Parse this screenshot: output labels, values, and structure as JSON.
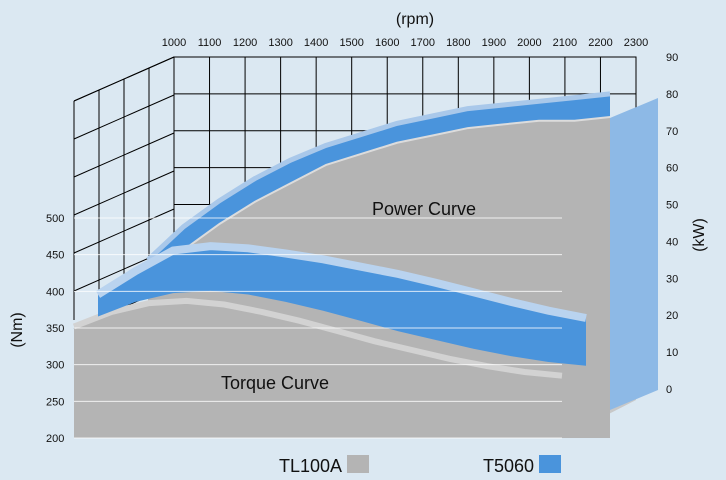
{
  "chart_data": {
    "type": "area",
    "title": "",
    "x_axis": {
      "label": "(rpm)",
      "ticks": [
        "1000",
        "1100",
        "1200",
        "1300",
        "1400",
        "1500",
        "1600",
        "1700",
        "1800",
        "1900",
        "2000",
        "2100",
        "2200",
        "2300"
      ],
      "range": [
        1000,
        2300
      ]
    },
    "y_left": {
      "label": "(Nm)",
      "ticks": [
        "200",
        "250",
        "300",
        "350",
        "400",
        "450",
        "500"
      ],
      "range": [
        200,
        500
      ]
    },
    "y_right": {
      "label": "(kW)",
      "ticks": [
        "0",
        "10",
        "20",
        "30",
        "40",
        "50",
        "60",
        "70",
        "80",
        "90"
      ],
      "range": [
        0,
        90
      ]
    },
    "annotations": {
      "power": "Power Curve",
      "torque": "Torque Curve"
    },
    "legend": {
      "position": "bottom",
      "items": [
        {
          "name": "TL100A",
          "color": "#b4b4b4"
        },
        {
          "name": "T5060",
          "color": "#4a94dc"
        }
      ]
    },
    "series": [
      {
        "name": "T5060",
        "curve": "power",
        "axis": "kW",
        "x": [
          1000,
          1100,
          1200,
          1300,
          1400,
          1500,
          1600,
          1700,
          1800,
          1900,
          2000,
          2100,
          2200,
          2300
        ],
        "y": [
          35,
          44,
          51,
          57,
          62,
          66,
          69,
          72,
          74,
          76,
          77,
          78,
          79,
          80
        ]
      },
      {
        "name": "TL100A",
        "curve": "power",
        "axis": "kW",
        "x": [
          1000,
          1100,
          1200,
          1300,
          1400,
          1500,
          1600,
          1700,
          1800,
          1900,
          2000,
          2100,
          2200,
          2300
        ],
        "y": [
          30,
          38,
          45,
          51,
          56,
          61,
          64,
          67,
          69,
          71,
          72,
          73,
          73,
          74
        ]
      },
      {
        "name": "T5060",
        "curve": "torque",
        "axis": "Nm",
        "x": [
          1000,
          1100,
          1200,
          1300,
          1400,
          1500,
          1600,
          1700,
          1800,
          1900,
          2000,
          2100,
          2200,
          2300
        ],
        "y": [
          382,
          414,
          442,
          448,
          445,
          438,
          430,
          420,
          410,
          398,
          385,
          372,
          360,
          350
        ]
      },
      {
        "name": "TL100A",
        "curve": "torque",
        "axis": "Nm",
        "x": [
          1000,
          1100,
          1200,
          1300,
          1400,
          1500,
          1600,
          1700,
          1800,
          1900,
          2000,
          2100,
          2200,
          2300
        ],
        "y": [
          352,
          372,
          384,
          387,
          382,
          372,
          360,
          346,
          332,
          320,
          308,
          298,
          290,
          285
        ]
      }
    ]
  }
}
